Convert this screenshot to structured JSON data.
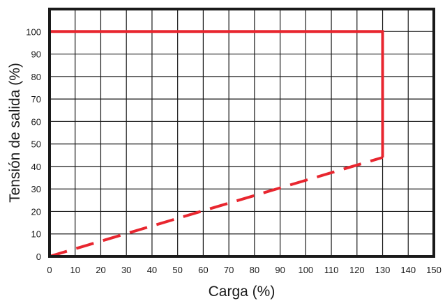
{
  "chart_data": {
    "type": "line",
    "xlabel": "Carga (%)",
    "ylabel": "Tensión de salida (%)",
    "xlim": [
      0,
      150
    ],
    "ylim": [
      0,
      110
    ],
    "x_ticks": [
      0,
      10,
      20,
      30,
      40,
      50,
      60,
      70,
      80,
      90,
      100,
      110,
      120,
      130,
      140,
      150
    ],
    "y_ticks": [
      0,
      10,
      20,
      30,
      40,
      50,
      60,
      70,
      80,
      90,
      100
    ],
    "grid": true,
    "line_color": "#e8262f",
    "series": [
      {
        "style": "solid",
        "x": [
          0,
          130,
          130
        ],
        "y": [
          100,
          100,
          44
        ]
      },
      {
        "style": "dashed",
        "x": [
          0,
          130
        ],
        "y": [
          0,
          44
        ]
      }
    ]
  }
}
